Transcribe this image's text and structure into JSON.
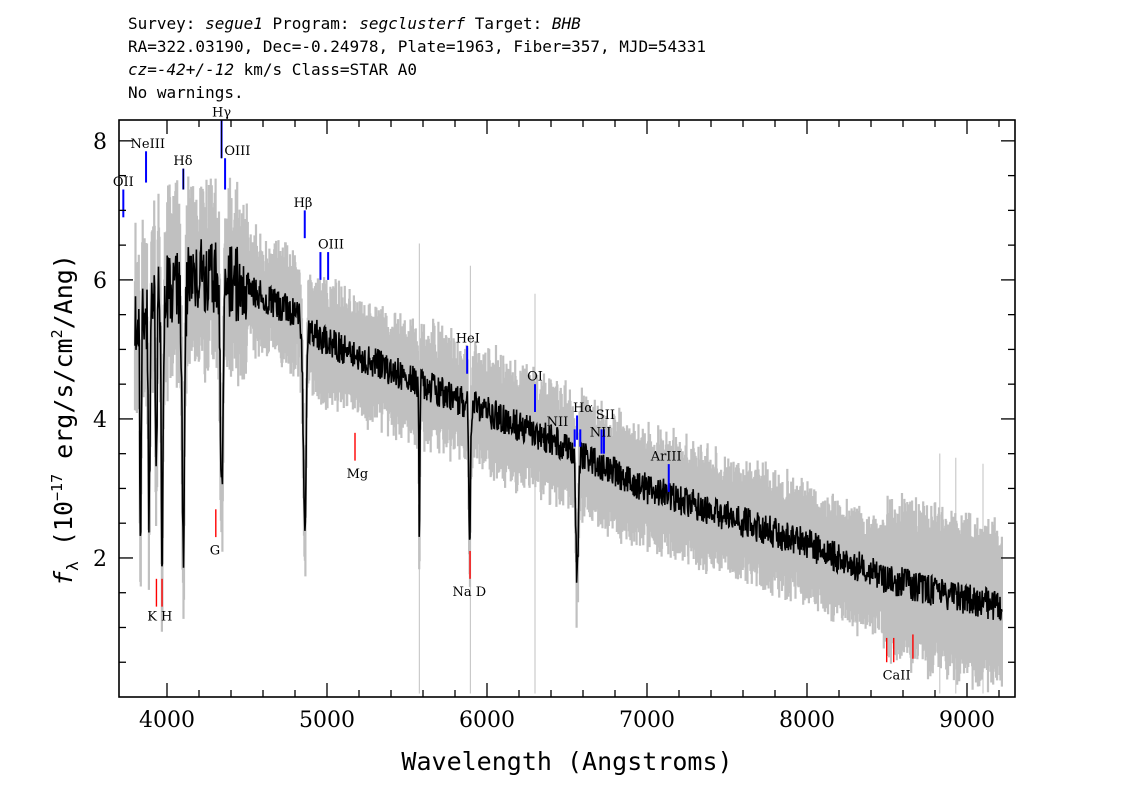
{
  "header": {
    "line1": {
      "survey_label": "Survey: ",
      "survey": "segue1",
      "program_label": " Program: ",
      "program": "segclusterf",
      "target_label": " Target: ",
      "target": "BHB"
    },
    "line2": "RA=322.03190, Dec=-0.24978, Plate=1963, Fiber=357, MJD=54331",
    "line3": {
      "cz": "cz=-42+/-12",
      "cz_unit": " km/s Class=STAR A0"
    },
    "line4": "No warnings."
  },
  "chart_data": {
    "type": "line",
    "xlabel": "Wavelength (Angstroms)",
    "ylabel_parts": {
      "f": "f",
      "sub": "λ",
      "open": " (10",
      "exp": "−17",
      "unit": " erg/s/cm",
      "sq": "2",
      "close": "/Ang)"
    },
    "xlim": [
      3700,
      9300
    ],
    "ylim": [
      0,
      8.3
    ],
    "x_ticks": [
      {
        "value": 4000,
        "label": "4000"
      },
      {
        "value": 5000,
        "label": "5000"
      },
      {
        "value": 6000,
        "label": "6000"
      },
      {
        "value": 7000,
        "label": "7000"
      },
      {
        "value": 8000,
        "label": "8000"
      },
      {
        "value": 9000,
        "label": "9000"
      }
    ],
    "y_ticks": [
      {
        "value": 2,
        "label": "2"
      },
      {
        "value": 4,
        "label": "4"
      },
      {
        "value": 6,
        "label": "6"
      },
      {
        "value": 8,
        "label": "8"
      }
    ],
    "spectrum_range": [
      3800,
      9220
    ],
    "continuum_knots": [
      [
        3800,
        5.2
      ],
      [
        3900,
        5.7
      ],
      [
        4000,
        5.8
      ],
      [
        4200,
        6.1
      ],
      [
        4500,
        5.9
      ],
      [
        4800,
        5.5
      ],
      [
        5000,
        5.1
      ],
      [
        5500,
        4.6
      ],
      [
        6000,
        4.1
      ],
      [
        6500,
        3.6
      ],
      [
        7000,
        3.0
      ],
      [
        7500,
        2.6
      ],
      [
        8000,
        2.2
      ],
      [
        8500,
        1.7
      ],
      [
        9000,
        1.4
      ],
      [
        9220,
        1.3
      ]
    ],
    "absorption_features": [
      {
        "center": 3835,
        "depth": 3.3,
        "width": 6
      },
      {
        "center": 3889,
        "depth": 3.0,
        "width": 8
      },
      {
        "center": 3933,
        "depth": 2.6,
        "width": 7
      },
      {
        "center": 3970,
        "depth": 3.6,
        "width": 9
      },
      {
        "center": 4102,
        "depth": 3.6,
        "width": 12
      },
      {
        "center": 4341,
        "depth": 3.0,
        "width": 12
      },
      {
        "center": 4861,
        "depth": 2.9,
        "width": 13
      },
      {
        "center": 5577,
        "depth": 2.5,
        "width": 4
      },
      {
        "center": 5892,
        "depth": 2.2,
        "width": 7
      },
      {
        "center": 6563,
        "depth": 1.8,
        "width": 12
      }
    ],
    "series": [
      {
        "role": "flux",
        "color": "#000000"
      },
      {
        "role": "error",
        "color": "#c0c0c0"
      }
    ],
    "emission_lines": [
      {
        "label": "OII",
        "wavelength": 3727,
        "y0": 6.9,
        "y1": 7.3
      },
      {
        "label": "NeIII",
        "wavelength": 3869,
        "y0": 7.4,
        "y1": 7.85
      },
      {
        "label": "Hδ",
        "wavelength": 4102,
        "y0": 7.3,
        "y1": 7.6
      },
      {
        "label": "Hγ",
        "wavelength": 4341,
        "y0": 7.75,
        "y1": 8.3
      },
      {
        "label": "OIII",
        "wavelength": 4363,
        "y0": 7.3,
        "y1": 7.75
      },
      {
        "label": "Hβ",
        "wavelength": 4861,
        "y0": 6.6,
        "y1": 7.0
      },
      {
        "label": "OIII",
        "wavelength": 4959,
        "y0": 6.0,
        "y1": 6.4
      },
      {
        "label": "OIII",
        "wavelength": 5007,
        "y0": 6.0,
        "y1": 6.4
      },
      {
        "label": "HeI",
        "wavelength": 5876,
        "y0": 4.65,
        "y1": 5.05
      },
      {
        "label": "OI",
        "wavelength": 6300,
        "y0": 4.1,
        "y1": 4.5
      },
      {
        "label": "NII",
        "wavelength": 6548,
        "y0": 3.6,
        "y1": 3.85
      },
      {
        "label": "Hα",
        "wavelength": 6563,
        "y0": 3.7,
        "y1": 4.05
      },
      {
        "label": "NII",
        "wavelength": 6583,
        "y0": 3.6,
        "y1": 3.85
      },
      {
        "label": "SII",
        "wavelength": 6716,
        "y0": 3.5,
        "y1": 3.85
      },
      {
        "label": "SII",
        "wavelength": 6731,
        "y0": 3.5,
        "y1": 3.85
      },
      {
        "label": "ArIII",
        "wavelength": 7136,
        "y0": 2.95,
        "y1": 3.35
      }
    ],
    "absorption_labels": [
      {
        "label": "K",
        "wavelength": 3934,
        "y0": 1.3,
        "y1": 1.7
      },
      {
        "label": "H",
        "wavelength": 3969,
        "y0": 1.3,
        "y1": 1.7
      },
      {
        "label": "G",
        "wavelength": 4305,
        "y0": 2.3,
        "y1": 2.7
      },
      {
        "label": "Mg",
        "wavelength": 5175,
        "y0": 3.4,
        "y1": 3.8
      },
      {
        "label": "Na D",
        "wavelength": 5894,
        "y0": 1.7,
        "y1": 2.1
      },
      {
        "label": "CaII",
        "wavelength": 8498,
        "y0": 0.5,
        "y1": 0.85
      },
      {
        "label": "CaII",
        "wavelength": 8542,
        "y0": 0.5,
        "y1": 0.85
      },
      {
        "label": "CaII",
        "wavelength": 8662,
        "y0": 0.55,
        "y1": 0.9
      }
    ],
    "label_texts": {
      "OII": "OII",
      "NeIII": "NeIII",
      "Hd": "Hδ",
      "Hg": "Hγ",
      "OIII_a": "OIII",
      "Hb": "Hβ",
      "OIII_b": "OIII",
      "HeI": "HeI",
      "OI": "OI",
      "NII_a": "NII",
      "Ha": "Hα",
      "SII": "SII",
      "NII_b": "NII",
      "ArIII": "ArIII",
      "KH": "K H",
      "G": "G",
      "Mg": "Mg",
      "NaD": "Na D",
      "CaII": "CaII"
    },
    "colors": {
      "emission": "#0000ff",
      "absorption": "#ff0000",
      "flux": "#000000",
      "error": "#c0c0c0"
    }
  }
}
